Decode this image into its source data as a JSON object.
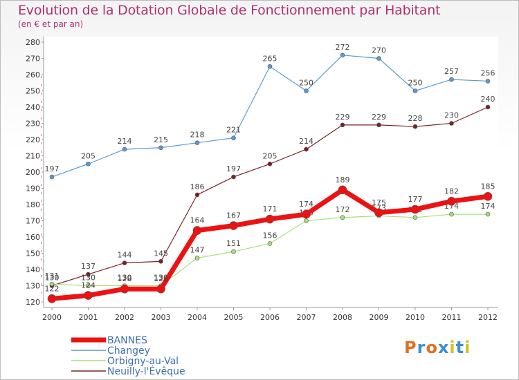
{
  "header": {
    "title": "Evolution de la Dotation Globale de Fonctionnement par Habitant",
    "subtitle": "(en € et par an)"
  },
  "logo": {
    "text": "Proxiti",
    "colors": [
      "#e07020",
      "#3a8fd0",
      "#e07020",
      "#3a8fd0",
      "#d8c020",
      "#3a8fd0",
      "#d8c020"
    ]
  },
  "chart_data": {
    "type": "line",
    "title": "Evolution de la Dotation Globale de Fonctionnement par Habitant",
    "subtitle": "(en € et par an)",
    "xlabel": "",
    "ylabel": "",
    "categories": [
      "2000",
      "2001",
      "2002",
      "2003",
      "2004",
      "2005",
      "2006",
      "2007",
      "2008",
      "2009",
      "2010",
      "2011",
      "2012"
    ],
    "ylim": [
      120,
      280
    ],
    "yticks": [
      120,
      130,
      140,
      150,
      160,
      170,
      180,
      190,
      200,
      210,
      220,
      230,
      240,
      250,
      260,
      270,
      280
    ],
    "grid": false,
    "legend_position": "bottom-left",
    "series": [
      {
        "name": "Changey",
        "color": "#5b9bd5",
        "values": [
          197,
          205,
          214,
          215,
          218,
          221,
          265,
          250,
          272,
          270,
          250,
          257,
          256
        ]
      },
      {
        "name": "Neuilly-l'Évêque",
        "color": "#7a2222",
        "values": [
          130,
          137,
          144,
          145,
          186,
          197,
          205,
          214,
          229,
          229,
          228,
          230,
          240
        ]
      },
      {
        "name": "Orbigny-au-Val",
        "color": "#a6e07a",
        "values": [
          131,
          130,
          130,
          130,
          147,
          151,
          156,
          170,
          172,
          173,
          172,
          174,
          174
        ]
      },
      {
        "name": "BANNES",
        "color": "#ee1111",
        "values": [
          122,
          124,
          128,
          128,
          164,
          167,
          171,
          174,
          189,
          175,
          177,
          182,
          185
        ]
      }
    ],
    "legend_order": [
      "BANNES",
      "Changey",
      "Orbigny-au-Val",
      "Neuilly-l'Évêque"
    ]
  }
}
